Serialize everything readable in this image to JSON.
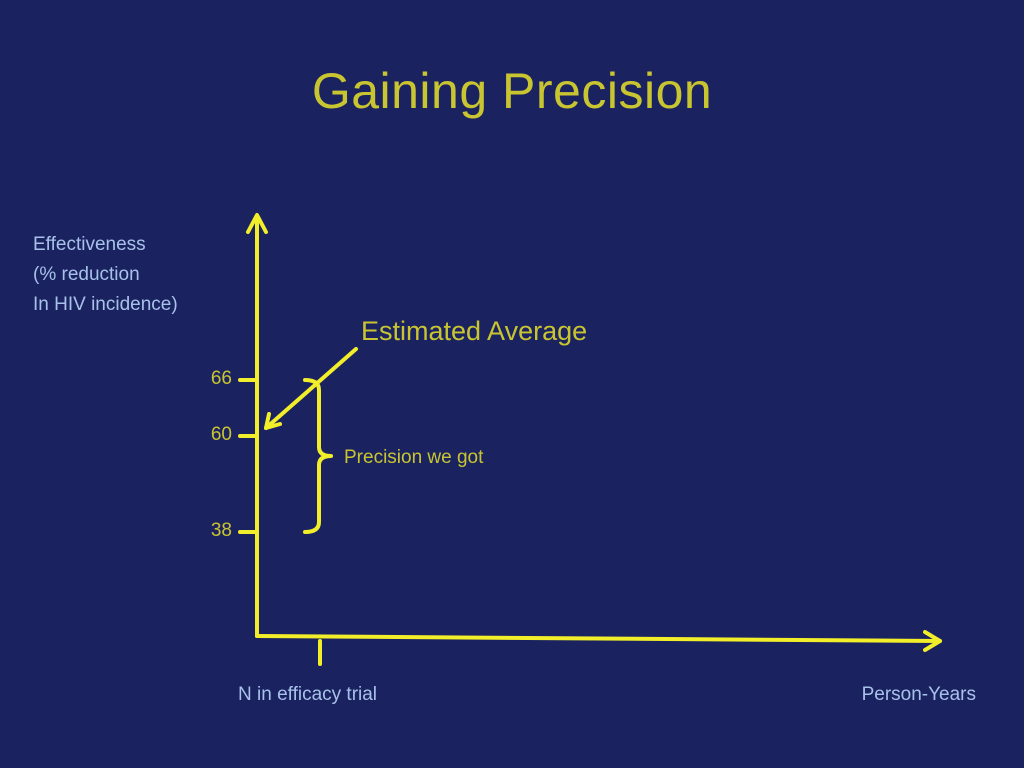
{
  "slide": {
    "title": "Gaining Precision"
  },
  "y_axis": {
    "label_lines": [
      "Effectiveness",
      "(% reduction",
      "In HIV incidence)"
    ],
    "ticks": [
      {
        "value": 66,
        "label": "66"
      },
      {
        "value": 60,
        "label": "60"
      },
      {
        "value": 38,
        "label": "38"
      }
    ]
  },
  "x_axis": {
    "marker_label": "N in efficacy trial",
    "axis_label": "Person-Years"
  },
  "annotations": {
    "estimated_average": "Estimated Average",
    "precision": "Precision we got"
  },
  "colors": {
    "background": "#1a2360",
    "axis": "#f2ef2a",
    "accent_text": "#c9c531",
    "label_text": "#a8c1ea"
  }
}
